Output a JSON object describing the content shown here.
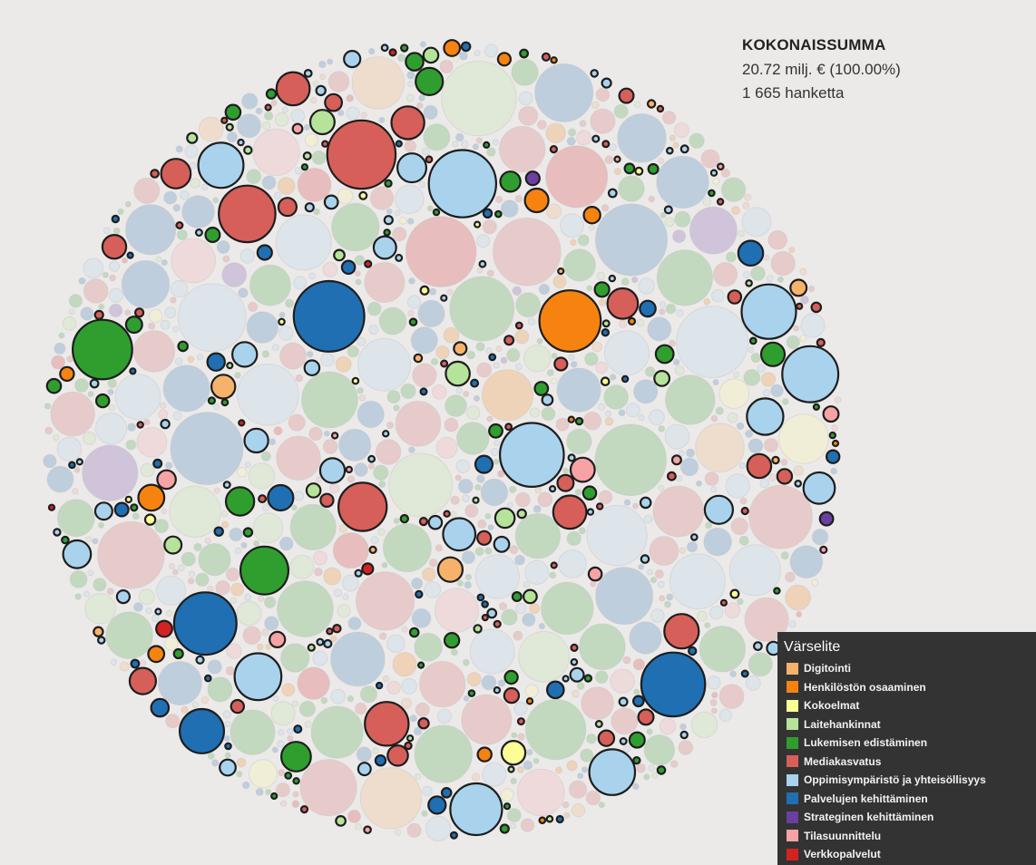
{
  "chart_data": {
    "type": "bubble-pack",
    "summary": {
      "title": "KOKONAISSUMMA",
      "total": "20.72 milj. € (100.00%)",
      "count": "1 665 hanketta"
    },
    "legend": {
      "title": "Värselite",
      "placement": "bottom-right"
    },
    "categories": [
      {
        "name": "Digitointi",
        "color": "#f6b26b"
      },
      {
        "name": "Henkilöstön osaaminen",
        "color": "#f6830f"
      },
      {
        "name": "Kokoelmat",
        "color": "#fdfd96"
      },
      {
        "name": "Laitehankinnat",
        "color": "#b6e39a"
      },
      {
        "name": "Lukemisen edistäminen",
        "color": "#2f9e2f"
      },
      {
        "name": "Mediakasvatus",
        "color": "#d65f5a"
      },
      {
        "name": "Oppimisympäristö ja yhteisöllisyys",
        "color": "#a9d3ec"
      },
      {
        "name": "Palvelujen kehittäminen",
        "color": "#1f6fb2"
      },
      {
        "name": "Strateginen kehittäminen",
        "color": "#6a3fa0"
      },
      {
        "name": "Tilasuunnittelu",
        "color": "#f7a3a6"
      },
      {
        "name": "Verkkopalvelut",
        "color": "#d42222"
      }
    ]
  }
}
